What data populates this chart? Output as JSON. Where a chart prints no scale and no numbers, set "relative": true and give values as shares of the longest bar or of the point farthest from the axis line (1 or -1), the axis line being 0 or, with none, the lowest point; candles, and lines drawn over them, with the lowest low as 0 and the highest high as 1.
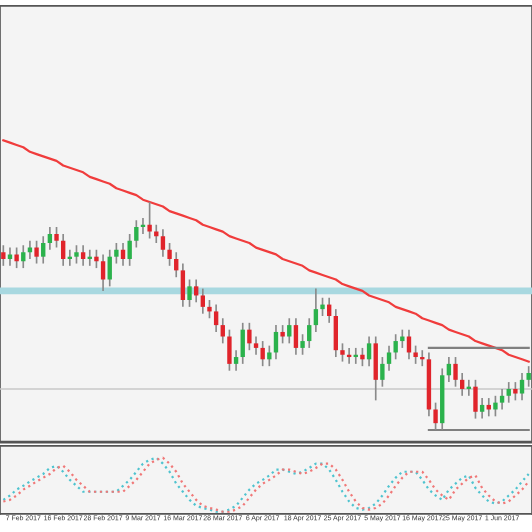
{
  "chart_data": [
    {
      "type": "candlestick",
      "relative": true,
      "tick_labels": "x",
      "categories": [
        null,
        null,
        null,
        "7 Feb 2017",
        null,
        null,
        null,
        null,
        null,
        "16 Feb 2017",
        null,
        null,
        null,
        null,
        null,
        "28 Feb 2017",
        null,
        null,
        null,
        null,
        null,
        "9 Mar 2017",
        null,
        null,
        null,
        null,
        null,
        "16 Mar 2017",
        null,
        null,
        null,
        null,
        null,
        "28 Mar 2017",
        null,
        null,
        null,
        null,
        null,
        "6 Apr 2017",
        null,
        null,
        null,
        null,
        null,
        "18 Apr 2017",
        null,
        null,
        null,
        null,
        null,
        "25 Apr 2017",
        null,
        null,
        null,
        null,
        null,
        "5 May 2017",
        null,
        null,
        null,
        null,
        null,
        "16 May 2017",
        null,
        null,
        null,
        null,
        null,
        "25 May 2017",
        null,
        null,
        null,
        null,
        null,
        "1 Jun 2017",
        null,
        null,
        null,
        null
      ],
      "ohlc": [
        [
          0.78,
          0.81,
          0.72,
          0.75
        ],
        [
          0.75,
          0.8,
          0.72,
          0.77
        ],
        [
          0.77,
          0.8,
          0.71,
          0.74
        ],
        [
          0.74,
          0.81,
          0.71,
          0.78
        ],
        [
          0.78,
          0.83,
          0.75,
          0.8
        ],
        [
          0.8,
          0.83,
          0.73,
          0.76
        ],
        [
          0.76,
          0.85,
          0.73,
          0.82
        ],
        [
          0.82,
          0.89,
          0.79,
          0.86
        ],
        [
          0.86,
          0.89,
          0.8,
          0.83
        ],
        [
          0.83,
          0.86,
          0.72,
          0.75
        ],
        [
          0.75,
          0.79,
          0.72,
          0.76
        ],
        [
          0.76,
          0.81,
          0.73,
          0.78
        ],
        [
          0.78,
          0.81,
          0.72,
          0.75
        ],
        [
          0.75,
          0.79,
          0.72,
          0.76
        ],
        [
          0.76,
          0.79,
          0.71,
          0.74
        ],
        [
          0.74,
          0.77,
          0.61,
          0.66
        ],
        [
          0.66,
          0.79,
          0.63,
          0.76
        ],
        [
          0.76,
          0.82,
          0.73,
          0.79
        ],
        [
          0.79,
          0.82,
          0.72,
          0.75
        ],
        [
          0.75,
          0.86,
          0.72,
          0.83
        ],
        [
          0.83,
          0.92,
          0.8,
          0.89
        ],
        [
          0.89,
          0.93,
          0.86,
          0.9
        ],
        [
          0.9,
          1.0,
          0.84,
          0.87
        ],
        [
          0.87,
          0.9,
          0.82,
          0.85
        ],
        [
          0.85,
          0.88,
          0.76,
          0.79
        ],
        [
          0.79,
          0.82,
          0.72,
          0.75
        ],
        [
          0.75,
          0.78,
          0.67,
          0.7
        ],
        [
          0.7,
          0.73,
          0.54,
          0.57
        ],
        [
          0.57,
          0.66,
          0.54,
          0.63
        ],
        [
          0.63,
          0.66,
          0.56,
          0.59
        ],
        [
          0.59,
          0.62,
          0.51,
          0.54
        ],
        [
          0.54,
          0.57,
          0.49,
          0.52
        ],
        [
          0.52,
          0.55,
          0.43,
          0.46
        ],
        [
          0.46,
          0.49,
          0.38,
          0.41
        ],
        [
          0.41,
          0.44,
          0.26,
          0.29
        ],
        [
          0.29,
          0.35,
          0.26,
          0.32
        ],
        [
          0.32,
          0.47,
          0.29,
          0.44
        ],
        [
          0.44,
          0.47,
          0.35,
          0.38
        ],
        [
          0.38,
          0.41,
          0.33,
          0.36
        ],
        [
          0.36,
          0.39,
          0.28,
          0.31
        ],
        [
          0.31,
          0.37,
          0.28,
          0.34
        ],
        [
          0.34,
          0.46,
          0.31,
          0.43
        ],
        [
          0.43,
          0.46,
          0.38,
          0.41
        ],
        [
          0.41,
          0.49,
          0.38,
          0.46
        ],
        [
          0.46,
          0.49,
          0.33,
          0.36
        ],
        [
          0.36,
          0.42,
          0.33,
          0.39
        ],
        [
          0.39,
          0.49,
          0.36,
          0.46
        ],
        [
          0.46,
          0.62,
          0.43,
          0.53
        ],
        [
          0.53,
          0.58,
          0.5,
          0.55
        ],
        [
          0.55,
          0.58,
          0.47,
          0.5
        ],
        [
          0.5,
          0.53,
          0.32,
          0.35
        ],
        [
          0.35,
          0.38,
          0.3,
          0.33
        ],
        [
          0.33,
          0.36,
          0.29,
          0.32
        ],
        [
          0.32,
          0.36,
          0.29,
          0.33
        ],
        [
          0.33,
          0.36,
          0.28,
          0.31
        ],
        [
          0.31,
          0.41,
          0.28,
          0.38
        ],
        [
          0.38,
          0.41,
          0.13,
          0.22
        ],
        [
          0.22,
          0.32,
          0.19,
          0.29
        ],
        [
          0.29,
          0.37,
          0.26,
          0.34
        ],
        [
          0.34,
          0.42,
          0.31,
          0.39
        ],
        [
          0.39,
          0.44,
          0.36,
          0.41
        ],
        [
          0.41,
          0.44,
          0.31,
          0.34
        ],
        [
          0.34,
          0.37,
          0.29,
          0.32
        ],
        [
          0.32,
          0.35,
          0.28,
          0.31
        ],
        [
          0.31,
          0.34,
          0.06,
          0.09
        ],
        [
          0.09,
          0.12,
          0.0,
          0.03
        ],
        [
          0.03,
          0.27,
          0.0,
          0.24
        ],
        [
          0.24,
          0.32,
          0.21,
          0.29
        ],
        [
          0.29,
          0.32,
          0.19,
          0.22
        ],
        [
          0.22,
          0.25,
          0.15,
          0.18
        ],
        [
          0.18,
          0.22,
          0.15,
          0.19
        ],
        [
          0.19,
          0.22,
          0.05,
          0.08
        ],
        [
          0.08,
          0.14,
          0.05,
          0.11
        ],
        [
          0.11,
          0.14,
          0.06,
          0.09
        ],
        [
          0.09,
          0.15,
          0.06,
          0.12
        ],
        [
          0.12,
          0.18,
          0.09,
          0.15
        ],
        [
          0.15,
          0.21,
          0.12,
          0.18
        ],
        [
          0.18,
          0.21,
          0.13,
          0.16
        ],
        [
          0.16,
          0.25,
          0.13,
          0.22
        ],
        [
          0.22,
          0.28,
          0.19,
          0.25
        ]
      ],
      "colors": [
        "#e0242b",
        "#2bb24c",
        "#e0242b",
        "#2bb24c",
        "#2bb24c",
        "#e0242b",
        "#2bb24c",
        "#2bb24c",
        "#e0242b",
        "#e0242b",
        "#2bb24c",
        "#2bb24c",
        "#e0242b",
        "#2bb24c",
        "#e0242b",
        "#e0242b",
        "#2bb24c",
        "#2bb24c",
        "#e0242b",
        "#2bb24c",
        "#2bb24c",
        "#2bb24c",
        "#e0242b",
        "#e0242b",
        "#e0242b",
        "#e0242b",
        "#e0242b",
        "#e0242b",
        "#2bb24c",
        "#e0242b",
        "#e0242b",
        "#e0242b",
        "#e0242b",
        "#e0242b",
        "#e0242b",
        "#2bb24c",
        "#2bb24c",
        "#e0242b",
        "#e0242b",
        "#e0242b",
        "#2bb24c",
        "#2bb24c",
        "#e0242b",
        "#2bb24c",
        "#e0242b",
        "#2bb24c",
        "#2bb24c",
        "#2bb24c",
        "#2bb24c",
        "#e0242b",
        "#e0242b",
        "#e0242b",
        "#e0242b",
        "#2bb24c",
        "#e0242b",
        "#2bb24c",
        "#e0242b",
        "#2bb24c",
        "#2bb24c",
        "#2bb24c",
        "#2bb24c",
        "#e0242b",
        "#e0242b",
        "#e0242b",
        "#e0242b",
        "#e0242b",
        "#2bb24c",
        "#2bb24c",
        "#e0242b",
        "#e0242b",
        "#2bb24c",
        "#e0242b",
        "#2bb24c",
        "#e0242b",
        "#2bb24c",
        "#2bb24c",
        "#2bb24c",
        "#e0242b",
        "#2bb24c",
        "#2bb24c"
      ],
      "series": [
        {
          "type": "line",
          "color": "#f03c3c",
          "values": [
            1.27,
            1.26,
            1.25,
            1.24,
            1.22,
            1.21,
            1.2,
            1.19,
            1.18,
            1.16,
            1.15,
            1.14,
            1.13,
            1.11,
            1.1,
            1.09,
            1.08,
            1.06,
            1.05,
            1.04,
            1.03,
            1.01,
            1.0,
            0.99,
            0.98,
            0.96,
            0.95,
            0.94,
            0.93,
            0.92,
            0.9,
            0.89,
            0.88,
            0.87,
            0.85,
            0.84,
            0.83,
            0.82,
            0.8,
            0.79,
            0.78,
            0.77,
            0.75,
            0.74,
            0.73,
            0.72,
            0.7,
            0.69,
            0.68,
            0.67,
            0.66,
            0.64,
            0.63,
            0.62,
            0.61,
            0.59,
            0.58,
            0.57,
            0.56,
            0.54,
            0.53,
            0.52,
            0.51,
            0.49,
            0.48,
            0.47,
            0.46,
            0.44,
            0.43,
            0.42,
            0.41,
            0.39,
            0.38,
            0.37,
            0.36,
            0.35,
            0.33,
            0.32,
            0.31,
            0.3
          ]
        },
        {
          "type": "line",
          "color": "#808080",
          "values": [
            null,
            null,
            null,
            null,
            null,
            null,
            null,
            null,
            null,
            null,
            null,
            null,
            null,
            null,
            null,
            null,
            null,
            null,
            null,
            null,
            null,
            null,
            null,
            null,
            null,
            null,
            null,
            null,
            null,
            null,
            null,
            null,
            null,
            null,
            null,
            null,
            null,
            null,
            null,
            null,
            null,
            null,
            null,
            null,
            null,
            null,
            null,
            null,
            null,
            null,
            null,
            null,
            null,
            null,
            null,
            null,
            null,
            null,
            null,
            null,
            null,
            null,
            null,
            null,
            0.36,
            0.36,
            0.36,
            0.36,
            0.36,
            0.36,
            0.36,
            0.36,
            0.36,
            0.36,
            0.36,
            0.36,
            0.36,
            0.36,
            0.36,
            0.36
          ]
        },
        {
          "type": "line",
          "color": "#808080",
          "values": [
            null,
            null,
            null,
            null,
            null,
            null,
            null,
            null,
            null,
            null,
            null,
            null,
            null,
            null,
            null,
            null,
            null,
            null,
            null,
            null,
            null,
            null,
            null,
            null,
            null,
            null,
            null,
            null,
            null,
            null,
            null,
            null,
            null,
            null,
            null,
            null,
            null,
            null,
            null,
            null,
            null,
            null,
            null,
            null,
            null,
            null,
            null,
            null,
            null,
            null,
            null,
            null,
            null,
            null,
            null,
            null,
            null,
            null,
            null,
            null,
            null,
            null,
            null,
            null,
            0.0,
            0.0,
            0.0,
            0.0,
            0.0,
            0.0,
            0.0,
            0.0,
            0.0,
            0.0,
            0.0,
            0.0,
            0.0,
            0.0,
            0.0,
            0.0
          ]
        }
      ],
      "ref_lines": [
        {
          "axis": "y",
          "value": 0.61,
          "color": "#a8d8e0"
        },
        {
          "axis": "y",
          "value": 0.18,
          "color": "#c8c8c8"
        }
      ]
    },
    {
      "type": "line",
      "relative": true,
      "tick_labels": false,
      "line_style": "dotted",
      "categories": [
        null,
        null,
        null,
        null,
        null,
        null,
        null,
        null,
        null,
        null,
        null,
        null,
        null,
        null,
        null,
        null,
        null,
        null,
        null,
        null,
        null,
        null,
        null,
        null,
        null,
        null,
        null,
        null,
        null,
        null,
        null,
        null,
        null,
        null,
        null,
        null,
        null,
        null,
        null,
        null,
        null,
        null,
        null,
        null,
        null,
        null,
        null,
        null,
        null,
        null,
        null,
        null,
        null,
        null,
        null,
        null,
        null,
        null,
        null,
        null,
        null,
        null,
        null,
        null,
        null,
        null,
        null,
        null,
        null,
        null,
        null,
        null,
        null,
        null,
        null,
        null,
        null,
        null,
        null,
        null
      ],
      "series": [
        {
          "color": "#4fc3cf",
          "values": [
            0.22,
            0.3,
            0.41,
            0.48,
            0.56,
            0.63,
            0.7,
            0.81,
            0.85,
            0.74,
            0.59,
            0.48,
            0.37,
            0.37,
            0.37,
            0.37,
            0.37,
            0.37,
            0.48,
            0.59,
            0.74,
            0.89,
            0.96,
            1.0,
            0.89,
            0.74,
            0.52,
            0.37,
            0.22,
            0.11,
            0.07,
            0.04,
            0,
            0,
            0.04,
            0.11,
            0.26,
            0.41,
            0.52,
            0.59,
            0.67,
            0.78,
            0.78,
            0.74,
            0.7,
            0.74,
            0.81,
            0.89,
            0.89,
            0.78,
            0.59,
            0.37,
            0.19,
            0.07,
            0.04,
            0.07,
            0.15,
            0.3,
            0.48,
            0.63,
            0.74,
            0.74,
            0.74,
            0.59,
            0.41,
            0.3,
            0.22,
            0.41,
            0.52,
            0.63,
            0.67,
            0.44,
            0.3,
            0.19,
            0.15,
            0.19,
            0.3,
            0.41,
            0.56,
            0.7
          ]
        },
        {
          "color": "#f07878",
          "values": [
            0.19,
            0.22,
            0.3,
            0.41,
            0.48,
            0.56,
            0.63,
            0.7,
            0.81,
            0.85,
            0.74,
            0.59,
            0.48,
            0.37,
            0.37,
            0.37,
            0.37,
            0.37,
            0.37,
            0.48,
            0.59,
            0.74,
            0.89,
            0.96,
            1.0,
            0.89,
            0.74,
            0.52,
            0.37,
            0.22,
            0.11,
            0.07,
            0.04,
            0,
            0,
            0.04,
            0.11,
            0.26,
            0.41,
            0.52,
            0.59,
            0.67,
            0.78,
            0.78,
            0.74,
            0.7,
            0.74,
            0.81,
            0.89,
            0.89,
            0.78,
            0.59,
            0.37,
            0.19,
            0.07,
            0.04,
            0.07,
            0.15,
            0.3,
            0.48,
            0.63,
            0.74,
            0.74,
            0.74,
            0.59,
            0.41,
            0.3,
            0.22,
            0.41,
            0.52,
            0.63,
            0.67,
            0.44,
            0.3,
            0.19,
            0.15,
            0.19,
            0.3,
            0.41,
            0.56
          ]
        }
      ]
    }
  ]
}
